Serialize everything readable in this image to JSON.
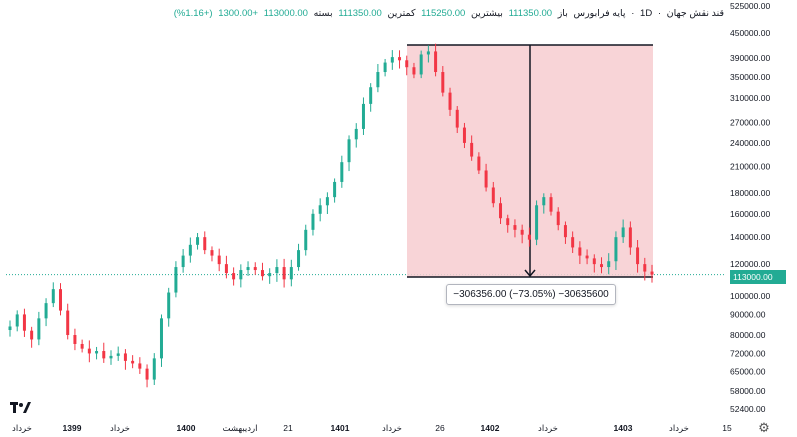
{
  "header": {
    "symbol": "قند نقش جهان",
    "interval": "1D",
    "open_label": "باز",
    "open_value": "111350.00",
    "high_label": "بیشترین",
    "high_value": "115250.00",
    "low_label": "کمترین",
    "low_value": "111350.00",
    "close_label": "بسته",
    "close_value": "113000.00",
    "change": "+1300.00",
    "change_pct": "(+1.16%)",
    "base_label": "پایه فرابورس"
  },
  "measure": {
    "label": "−306356.00 (−73.05%) −30635600"
  },
  "current_price_tag": "113000.00",
  "colors": {
    "up": "#22ab94",
    "down": "#f23645",
    "measure_fill": "#f7cdd0",
    "price_line": "#22ab94"
  },
  "icons": {
    "logo": "tradingview-logo-icon",
    "settings": "gear-icon"
  },
  "chart_data": {
    "type": "candlestick",
    "y_scale": "log",
    "y_ticks": [
      "525000.00",
      "450000.00",
      "390000.00",
      "350000.00",
      "310000.00",
      "270000.00",
      "240000.00",
      "210000.00",
      "180000.00",
      "160000.00",
      "140000.00",
      "120000.00",
      "100000.00",
      "90000.00",
      "80000.00",
      "72000.00",
      "65000.00",
      "58000.00",
      "52400.00"
    ],
    "y_tick_values": [
      525000,
      450000,
      390000,
      350000,
      310000,
      270000,
      240000,
      210000,
      180000,
      160000,
      140000,
      120000,
      100000,
      90000,
      80000,
      72000,
      65000,
      58000,
      52400
    ],
    "x_ticks": [
      {
        "label": "خرداد",
        "major": false
      },
      {
        "label": "1399",
        "major": true
      },
      {
        "label": "خرداد",
        "major": false
      },
      {
        "label": "1400",
        "major": true
      },
      {
        "label": "اردیبهشت",
        "major": false
      },
      {
        "label": "21",
        "major": false
      },
      {
        "label": "1401",
        "major": true
      },
      {
        "label": "خرداد",
        "major": false
      },
      {
        "label": "26",
        "major": false
      },
      {
        "label": "1402",
        "major": true
      },
      {
        "label": "خرداد",
        "major": false
      },
      {
        "label": "1403",
        "major": true
      },
      {
        "label": "خرداد",
        "major": false
      },
      {
        "label": "15",
        "major": false
      }
    ],
    "series": [
      {
        "values": [
          84000,
          90000,
          82000,
          78000,
          88000,
          96000,
          104000,
          92000,
          80000,
          76000,
          74000,
          72000,
          73000,
          70000,
          71000,
          72000,
          69000,
          68000,
          66000,
          62000,
          70000,
          88000,
          102000,
          118000,
          126000,
          134000,
          140000,
          130000,
          126000,
          120000,
          114000,
          110000,
          116000,
          118000,
          116000,
          112000,
          114000,
          118000,
          110000,
          118000,
          130000,
          146000,
          160000,
          168000,
          176000,
          192000,
          215000,
          245000,
          260000,
          300000,
          330000,
          360000,
          380000,
          392000,
          385000,
          370000,
          355000,
          398000,
          405000,
          360000,
          320000,
          290000,
          262000,
          240000,
          222000,
          205000,
          186000,
          170000,
          156000,
          150000,
          146000,
          142000,
          138000,
          168000,
          176000,
          162000,
          150000,
          140000,
          132000,
          126000,
          124000,
          120000,
          118000,
          122000,
          140000,
          148000,
          132000,
          120000,
          115000,
          113000
        ]
      }
    ],
    "measure_range": {
      "start_price": 419356,
      "end_price": 113000,
      "change": -306356,
      "change_pct": -73.05,
      "volume": -30635600
    },
    "last_price": 113000
  }
}
